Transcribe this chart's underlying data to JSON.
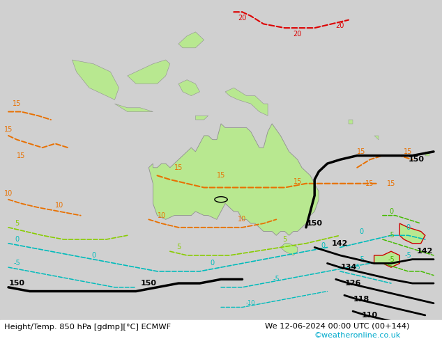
{
  "title_left": "Height/Temp. 850 hPa [gdmp][°C] ECMWF",
  "title_right": "We 12-06-2024 00:00 UTC (00+144)",
  "watermark": "©weatheronline.co.uk",
  "bg_color": "#d0d0d0",
  "land_color": "#b8e890",
  "land_edge": "#909090",
  "ocean_color": "#d0d0d0",
  "white_strip": "#ffffff",
  "watermark_color": "#00aacc",
  "c_orange": "#e87000",
  "c_red": "#dd0000",
  "c_black": "#000000",
  "c_green": "#88cc00",
  "c_cyan": "#00bbbb",
  "c_dark_green": "#44aa00"
}
